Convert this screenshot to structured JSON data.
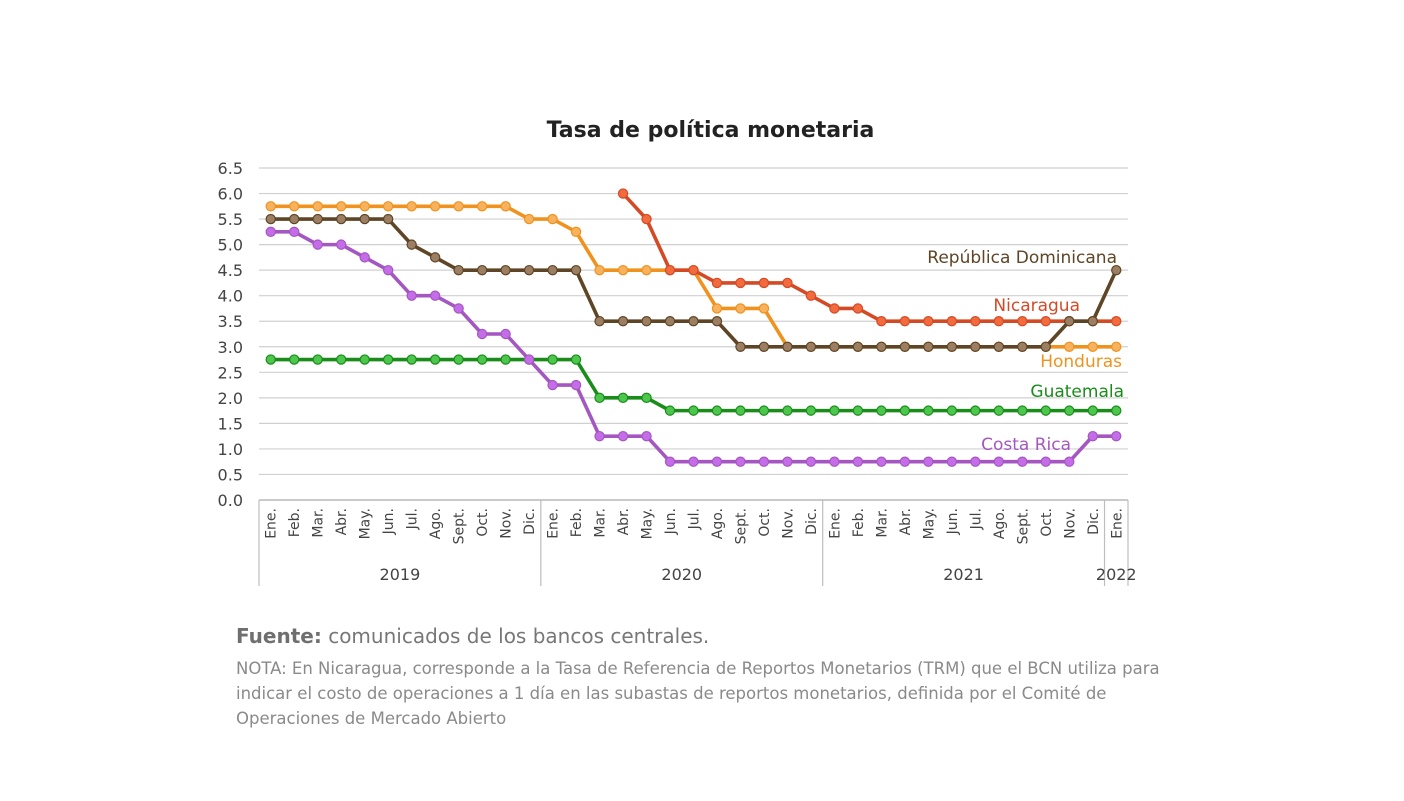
{
  "chart_data": {
    "type": "line",
    "title": "Tasa de política monetaria",
    "xlabel": "",
    "ylabel": "",
    "ylim": [
      0,
      6.5
    ],
    "yticks": [
      "0.0",
      "0.5",
      "1.0",
      "1.5",
      "2.0",
      "2.5",
      "3.0",
      "3.5",
      "4.0",
      "4.5",
      "5.0",
      "5.5",
      "6.0",
      "6.5"
    ],
    "grid": true,
    "legend": "inline-labels",
    "categories": [
      "Ene.",
      "Feb.",
      "Mar.",
      "Abr.",
      "May.",
      "Jun.",
      "Jul.",
      "Ago.",
      "Sept.",
      "Oct.",
      "Nov.",
      "Dic.",
      "Ene.",
      "Feb.",
      "Mar.",
      "Abr.",
      "May.",
      "Jun.",
      "Jul.",
      "Ago.",
      "Sept.",
      "Oct.",
      "Nov.",
      "Dic.",
      "Ene.",
      "Feb.",
      "Mar.",
      "Abr.",
      "May.",
      "Jun.",
      "Jul.",
      "Ago.",
      "Sept.",
      "Oct.",
      "Nov.",
      "Dic.",
      "Ene."
    ],
    "years": [
      {
        "label": "2019",
        "start": 0,
        "end": 11
      },
      {
        "label": "2020",
        "start": 12,
        "end": 23
      },
      {
        "label": "2021",
        "start": 24,
        "end": 35
      },
      {
        "label": "2022",
        "start": 36,
        "end": 36
      }
    ],
    "series": [
      {
        "name": "Honduras",
        "color": "#F0921E",
        "marker": "#F6B25E",
        "values": [
          5.75,
          5.75,
          5.75,
          5.75,
          5.75,
          5.75,
          5.75,
          5.75,
          5.75,
          5.75,
          5.75,
          5.5,
          5.5,
          5.25,
          4.5,
          4.5,
          4.5,
          4.5,
          4.5,
          3.75,
          3.75,
          3.75,
          3.0,
          3.0,
          3.0,
          3.0,
          3.0,
          3.0,
          3.0,
          3.0,
          3.0,
          3.0,
          3.0,
          3.0,
          3.0,
          3.0,
          3.0
        ]
      },
      {
        "name": "Nicaragua",
        "color": "#D44A25",
        "marker": "#F26B3F",
        "values": [
          null,
          null,
          null,
          null,
          null,
          null,
          null,
          null,
          null,
          null,
          null,
          null,
          null,
          null,
          null,
          6.0,
          5.5,
          4.5,
          4.5,
          4.25,
          4.25,
          4.25,
          4.25,
          4.0,
          3.75,
          3.75,
          3.5,
          3.5,
          3.5,
          3.5,
          3.5,
          3.5,
          3.5,
          3.5,
          3.5,
          3.5,
          3.5
        ]
      },
      {
        "name": "Guatemala",
        "color": "#1A8C1A",
        "marker": "#4CC64C",
        "values": [
          2.75,
          2.75,
          2.75,
          2.75,
          2.75,
          2.75,
          2.75,
          2.75,
          2.75,
          2.75,
          2.75,
          2.75,
          2.75,
          2.75,
          2.0,
          2.0,
          2.0,
          1.75,
          1.75,
          1.75,
          1.75,
          1.75,
          1.75,
          1.75,
          1.75,
          1.75,
          1.75,
          1.75,
          1.75,
          1.75,
          1.75,
          1.75,
          1.75,
          1.75,
          1.75,
          1.75,
          1.75
        ]
      },
      {
        "name": "Costa Rica",
        "color": "#A457C0",
        "marker": "#C56DE8",
        "values": [
          5.25,
          5.25,
          5.0,
          5.0,
          4.75,
          4.5,
          4.0,
          4.0,
          3.75,
          3.25,
          3.25,
          2.75,
          2.25,
          2.25,
          1.25,
          1.25,
          1.25,
          0.75,
          0.75,
          0.75,
          0.75,
          0.75,
          0.75,
          0.75,
          0.75,
          0.75,
          0.75,
          0.75,
          0.75,
          0.75,
          0.75,
          0.75,
          0.75,
          0.75,
          0.75,
          1.25,
          1.25
        ]
      },
      {
        "name": "República Dominicana",
        "color": "#5E4526",
        "marker": "#9C7F62",
        "values": [
          5.5,
          5.5,
          5.5,
          5.5,
          5.5,
          5.5,
          5.0,
          4.75,
          4.5,
          4.5,
          4.5,
          4.5,
          4.5,
          4.5,
          3.5,
          3.5,
          3.5,
          3.5,
          3.5,
          3.5,
          3.0,
          3.0,
          3.0,
          3.0,
          3.0,
          3.0,
          3.0,
          3.0,
          3.0,
          3.0,
          3.0,
          3.0,
          3.0,
          3.0,
          3.5,
          3.5,
          4.5
        ]
      }
    ]
  },
  "footer": {
    "source_label": "Fuente:",
    "source_text": " comunicados de los bancos centrales.",
    "note": "NOTA: En Nicaragua, corresponde a la Tasa de Referencia de Reportos Monetarios (TRM) que el BCN utiliza para indicar el costo de operaciones a 1 día en las subastas de reportos monetarios, definida por el Comité de Operaciones de Mercado Abierto"
  }
}
